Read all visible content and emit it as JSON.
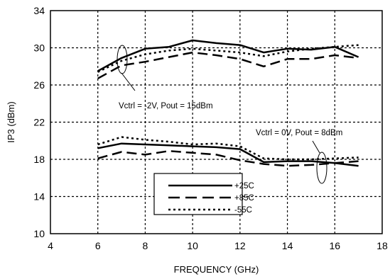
{
  "chart_data": {
    "type": "line",
    "title": "",
    "xlabel": "FREQUENCY (GHz)",
    "ylabel": "IP3 (dBm)",
    "xlim": [
      4,
      18
    ],
    "ylim": [
      10,
      34
    ],
    "xticks": [
      4,
      6,
      8,
      10,
      12,
      14,
      16,
      18
    ],
    "yticks": [
      10,
      14,
      18,
      22,
      26,
      30,
      34
    ],
    "grid": true,
    "legend_position": "bottom-center",
    "legend": [
      {
        "label": "+25C",
        "style": "solid"
      },
      {
        "label": "+85C",
        "style": "dashed"
      },
      {
        "label": "-55C",
        "style": "dotted"
      }
    ],
    "annotations": [
      {
        "text": "Vctrl = -2V, Pout = 15dBm"
      },
      {
        "text": "Vctrl = 0V, Pout = 8dBm"
      }
    ],
    "series": [
      {
        "group": "Vctrl = -2V, Pout = 15dBm",
        "temp": "+25C",
        "style": "solid",
        "x": [
          6,
          7,
          8,
          9,
          10,
          11,
          12,
          13,
          14,
          15,
          16,
          17
        ],
        "y": [
          27.5,
          28.9,
          29.9,
          30.1,
          30.8,
          30.5,
          30.3,
          29.5,
          29.9,
          29.8,
          30.1,
          29.0
        ]
      },
      {
        "group": "Vctrl = -2V, Pout = 15dBm",
        "temp": "+85C",
        "style": "dashed",
        "x": [
          6,
          7,
          8,
          9,
          10,
          11,
          12,
          13,
          14,
          15,
          16,
          17
        ],
        "y": [
          26.7,
          28.1,
          28.5,
          29.0,
          29.5,
          29.2,
          28.8,
          28.0,
          28.8,
          28.8,
          29.2,
          28.9
        ]
      },
      {
        "group": "Vctrl = -2V, Pout = 15dBm",
        "temp": "-55C",
        "style": "dotted",
        "x": [
          6,
          7,
          8,
          9,
          10,
          11,
          12,
          13,
          14,
          15,
          16,
          17
        ],
        "y": [
          27.4,
          28.6,
          29.3,
          29.7,
          29.9,
          29.7,
          29.5,
          29.1,
          29.6,
          29.9,
          30.1,
          30.3
        ]
      },
      {
        "group": "Vctrl = 0V, Pout = 8dBm",
        "temp": "+25C",
        "style": "solid",
        "x": [
          6,
          7,
          8,
          9,
          10,
          11,
          12,
          13,
          14,
          15,
          16,
          17
        ],
        "y": [
          19.2,
          19.7,
          19.6,
          19.5,
          19.4,
          19.3,
          19.1,
          17.7,
          17.8,
          17.8,
          17.6,
          17.3
        ]
      },
      {
        "group": "Vctrl = 0V, Pout = 8dBm",
        "temp": "+85C",
        "style": "dashed",
        "x": [
          6,
          7,
          8,
          9,
          10,
          11,
          12,
          13,
          14,
          15,
          16,
          17
        ],
        "y": [
          18.1,
          18.8,
          18.5,
          18.9,
          18.7,
          18.5,
          17.9,
          17.5,
          17.3,
          17.4,
          17.6,
          17.8
        ]
      },
      {
        "group": "Vctrl = 0V, Pout = 8dBm",
        "temp": "-55C",
        "style": "dotted",
        "x": [
          6,
          7,
          8,
          9,
          10,
          11,
          12,
          13,
          14,
          15,
          16,
          17
        ],
        "y": [
          19.6,
          20.4,
          20.1,
          19.9,
          19.6,
          19.7,
          19.4,
          18.1,
          18.0,
          18.0,
          18.1,
          18.2
        ]
      }
    ]
  }
}
